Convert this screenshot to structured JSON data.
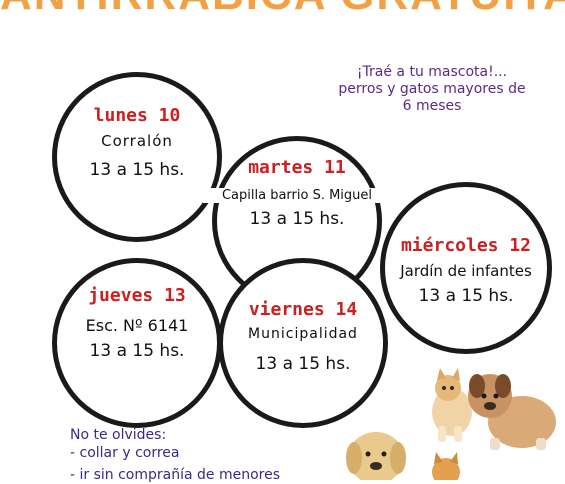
{
  "title": "ANTIRRÁBICA GRATUITA",
  "note": {
    "line1": "¡Traé a tu mascota!...",
    "line2": "perros y gatos mayores de",
    "line3": "6 meses"
  },
  "schedule": [
    {
      "day": "lunes 10",
      "place": "Corralón",
      "hours": "13 a 15 hs."
    },
    {
      "day": "martes 11",
      "place": "Capilla barrio S. Miguel",
      "hours": "13 a 15 hs."
    },
    {
      "day": "miércoles 12",
      "place": "Jardín de infantes",
      "hours": "13 a 15 hs."
    },
    {
      "day": "jueves 13",
      "place": "Esc. Nº 6141",
      "hours": "13 a 15 hs."
    },
    {
      "day": "viernes 14",
      "place": "Municipalidad",
      "hours": "13 a 15 hs."
    }
  ],
  "reminder": {
    "title": "No te olvides:",
    "item1": "- collar y correa",
    "item2": "- ir sin comprañía de menores"
  },
  "colors": {
    "banner": "#f2a043",
    "day": "#cc1f1f",
    "note": "#5b2a86"
  }
}
